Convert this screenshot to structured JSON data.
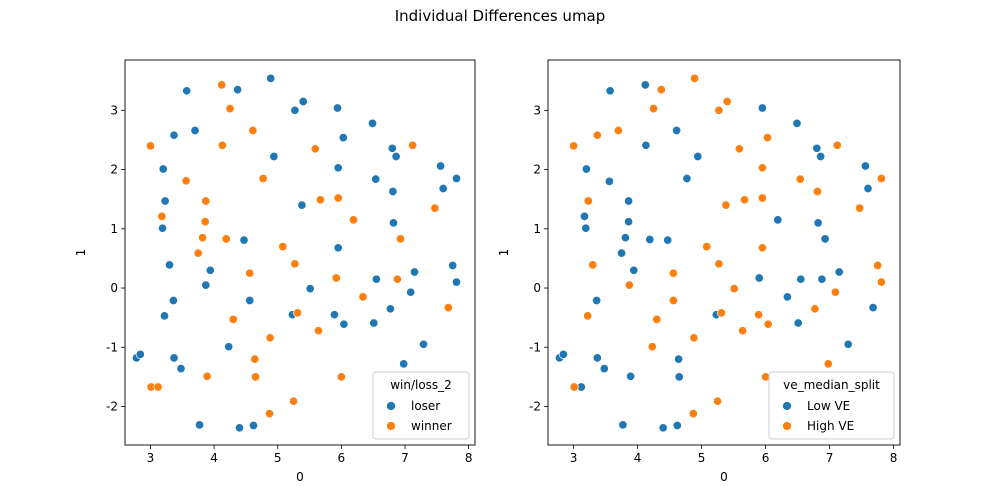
{
  "figure": {
    "suptitle": "Individual Differences umap"
  },
  "colors": {
    "blue": "#1f77b4",
    "orange": "#ff7f0e"
  },
  "chart_data": [
    {
      "type": "scatter",
      "title": "",
      "xlabel": "0",
      "ylabel": "1",
      "xlim": [
        2.6,
        8.1
      ],
      "ylim": [
        -2.65,
        3.85
      ],
      "xticks": [
        3,
        4,
        5,
        6,
        7,
        8
      ],
      "yticks": [
        -2,
        -1,
        0,
        1,
        2,
        3
      ],
      "grid": false,
      "legend": {
        "title": "win/loss_2",
        "placement": "lower right",
        "entries": [
          "loser",
          "winner"
        ]
      },
      "series": [
        {
          "name": "loser",
          "color": "#1f77b4",
          "points": [
            [
              2.78,
              -1.18
            ],
            [
              2.84,
              -1.12
            ],
            [
              3.19,
              1.01
            ],
            [
              3.2,
              2.01
            ],
            [
              3.23,
              1.47
            ],
            [
              3.22,
              -0.47
            ],
            [
              3.3,
              0.39
            ],
            [
              3.36,
              -0.21
            ],
            [
              3.37,
              2.58
            ],
            [
              3.37,
              -1.18
            ],
            [
              3.48,
              -1.36
            ],
            [
              3.57,
              3.33
            ],
            [
              3.7,
              2.66
            ],
            [
              3.77,
              -2.31
            ],
            [
              3.87,
              0.05
            ],
            [
              3.94,
              0.3
            ],
            [
              4.23,
              -0.99
            ],
            [
              4.37,
              3.35
            ],
            [
              4.4,
              -2.36
            ],
            [
              4.47,
              0.81
            ],
            [
              4.56,
              -0.21
            ],
            [
              4.62,
              -2.32
            ],
            [
              4.89,
              3.54
            ],
            [
              4.94,
              2.22
            ],
            [
              5.23,
              -0.45
            ],
            [
              5.27,
              3.0
            ],
            [
              5.38,
              1.4
            ],
            [
              5.4,
              3.15
            ],
            [
              5.51,
              -0.01
            ],
            [
              5.89,
              -0.45
            ],
            [
              5.94,
              3.04
            ],
            [
              5.95,
              0.68
            ],
            [
              5.95,
              2.03
            ],
            [
              6.03,
              2.54
            ],
            [
              6.04,
              -0.61
            ],
            [
              6.49,
              2.78
            ],
            [
              6.51,
              -0.59
            ],
            [
              6.54,
              1.84
            ],
            [
              6.55,
              0.15
            ],
            [
              6.77,
              -0.35
            ],
            [
              6.8,
              2.36
            ],
            [
              6.81,
              1.63
            ],
            [
              6.82,
              1.1
            ],
            [
              6.86,
              2.22
            ],
            [
              6.98,
              -1.28
            ],
            [
              7.09,
              -0.07
            ],
            [
              7.15,
              0.27
            ],
            [
              7.29,
              -0.95
            ],
            [
              7.56,
              2.06
            ],
            [
              7.6,
              1.68
            ],
            [
              7.75,
              0.38
            ],
            [
              7.81,
              1.85
            ],
            [
              7.81,
              0.1
            ]
          ]
        },
        {
          "name": "winner",
          "color": "#ff7f0e",
          "points": [
            [
              3.0,
              2.4
            ],
            [
              3.01,
              -1.67
            ],
            [
              3.12,
              -1.67
            ],
            [
              3.18,
              1.21
            ],
            [
              3.56,
              1.81
            ],
            [
              3.75,
              0.59
            ],
            [
              3.82,
              0.85
            ],
            [
              3.86,
              1.12
            ],
            [
              3.87,
              1.47
            ],
            [
              3.89,
              -1.49
            ],
            [
              4.12,
              3.43
            ],
            [
              4.13,
              2.41
            ],
            [
              4.19,
              0.83
            ],
            [
              4.25,
              3.03
            ],
            [
              4.3,
              -0.53
            ],
            [
              4.56,
              0.25
            ],
            [
              4.61,
              2.66
            ],
            [
              4.64,
              -1.2
            ],
            [
              4.65,
              -1.5
            ],
            [
              4.77,
              1.85
            ],
            [
              4.87,
              -2.12
            ],
            [
              4.88,
              -0.84
            ],
            [
              5.08,
              0.7
            ],
            [
              5.25,
              -1.91
            ],
            [
              5.27,
              0.41
            ],
            [
              5.31,
              -0.42
            ],
            [
              5.59,
              2.35
            ],
            [
              5.64,
              -0.72
            ],
            [
              5.67,
              1.49
            ],
            [
              5.92,
              0.17
            ],
            [
              5.95,
              1.52
            ],
            [
              6.0,
              -1.5
            ],
            [
              6.19,
              1.15
            ],
            [
              6.34,
              -0.15
            ],
            [
              6.88,
              0.15
            ],
            [
              6.93,
              0.83
            ],
            [
              7.12,
              2.41
            ],
            [
              7.47,
              1.35
            ],
            [
              7.68,
              -0.33
            ]
          ]
        }
      ]
    },
    {
      "type": "scatter",
      "title": "",
      "xlabel": "0",
      "ylabel": "1",
      "xlim": [
        2.6,
        8.1
      ],
      "ylim": [
        -2.65,
        3.85
      ],
      "xticks": [
        3,
        4,
        5,
        6,
        7,
        8
      ],
      "yticks": [
        -2,
        -1,
        0,
        1,
        2,
        3
      ],
      "grid": false,
      "legend": {
        "title": "ve_median_split",
        "placement": "lower right",
        "entries": [
          "Low VE",
          "High VE"
        ]
      },
      "series": [
        {
          "name": "Low VE",
          "color": "#1f77b4",
          "points": [
            [
              2.78,
              -1.18
            ],
            [
              2.84,
              -1.12
            ],
            [
              3.12,
              -1.67
            ],
            [
              3.17,
              1.21
            ],
            [
              3.19,
              1.01
            ],
            [
              3.2,
              2.01
            ],
            [
              3.36,
              -0.21
            ],
            [
              3.37,
              -1.18
            ],
            [
              3.48,
              -1.36
            ],
            [
              3.57,
              3.33
            ],
            [
              3.56,
              1.8
            ],
            [
              3.75,
              0.59
            ],
            [
              3.81,
              0.85
            ],
            [
              3.77,
              -2.31
            ],
            [
              3.86,
              1.12
            ],
            [
              3.86,
              1.47
            ],
            [
              3.89,
              -1.49
            ],
            [
              3.94,
              0.3
            ],
            [
              4.12,
              3.43
            ],
            [
              4.13,
              2.41
            ],
            [
              4.19,
              0.82
            ],
            [
              4.4,
              -2.36
            ],
            [
              4.47,
              0.81
            ],
            [
              4.61,
              2.66
            ],
            [
              4.64,
              -1.2
            ],
            [
              4.65,
              -1.5
            ],
            [
              4.62,
              -2.32
            ],
            [
              4.77,
              1.85
            ],
            [
              4.94,
              2.22
            ],
            [
              5.23,
              -0.45
            ],
            [
              5.9,
              0.17
            ],
            [
              5.95,
              3.04
            ],
            [
              6.19,
              1.15
            ],
            [
              6.34,
              -0.15
            ],
            [
              6.49,
              2.78
            ],
            [
              6.51,
              -0.59
            ],
            [
              6.55,
              0.15
            ],
            [
              6.8,
              2.36
            ],
            [
              6.82,
              1.1
            ],
            [
              6.86,
              2.22
            ],
            [
              6.88,
              0.15
            ],
            [
              6.93,
              0.83
            ],
            [
              7.15,
              0.27
            ],
            [
              7.29,
              -0.95
            ],
            [
              7.56,
              2.06
            ],
            [
              7.6,
              1.68
            ],
            [
              7.68,
              -0.33
            ]
          ]
        },
        {
          "name": "High VE",
          "color": "#ff7f0e",
          "points": [
            [
              3.0,
              2.4
            ],
            [
              3.01,
              -1.67
            ],
            [
              3.23,
              1.47
            ],
            [
              3.22,
              -0.47
            ],
            [
              3.3,
              0.39
            ],
            [
              3.37,
              2.58
            ],
            [
              3.7,
              2.66
            ],
            [
              3.87,
              0.05
            ],
            [
              4.23,
              -0.99
            ],
            [
              4.25,
              3.03
            ],
            [
              4.3,
              -0.53
            ],
            [
              4.37,
              3.35
            ],
            [
              4.56,
              0.25
            ],
            [
              4.56,
              -0.21
            ],
            [
              4.87,
              -2.12
            ],
            [
              4.88,
              -0.84
            ],
            [
              4.89,
              3.54
            ],
            [
              5.08,
              0.7
            ],
            [
              5.25,
              -1.91
            ],
            [
              5.27,
              3.0
            ],
            [
              5.27,
              0.41
            ],
            [
              5.31,
              -0.42
            ],
            [
              5.38,
              1.4
            ],
            [
              5.4,
              3.15
            ],
            [
              5.51,
              -0.01
            ],
            [
              5.59,
              2.35
            ],
            [
              5.64,
              -0.72
            ],
            [
              5.67,
              1.49
            ],
            [
              5.89,
              -0.45
            ],
            [
              5.95,
              1.52
            ],
            [
              5.95,
              2.03
            ],
            [
              5.95,
              0.68
            ],
            [
              6.0,
              -1.5
            ],
            [
              6.03,
              2.54
            ],
            [
              6.04,
              -0.61
            ],
            [
              6.54,
              1.84
            ],
            [
              6.77,
              -0.35
            ],
            [
              6.81,
              1.63
            ],
            [
              6.98,
              -1.28
            ],
            [
              7.09,
              -0.07
            ],
            [
              7.12,
              2.41
            ],
            [
              7.47,
              1.35
            ],
            [
              7.75,
              0.38
            ],
            [
              7.81,
              1.85
            ],
            [
              7.81,
              0.1
            ]
          ]
        }
      ]
    }
  ]
}
